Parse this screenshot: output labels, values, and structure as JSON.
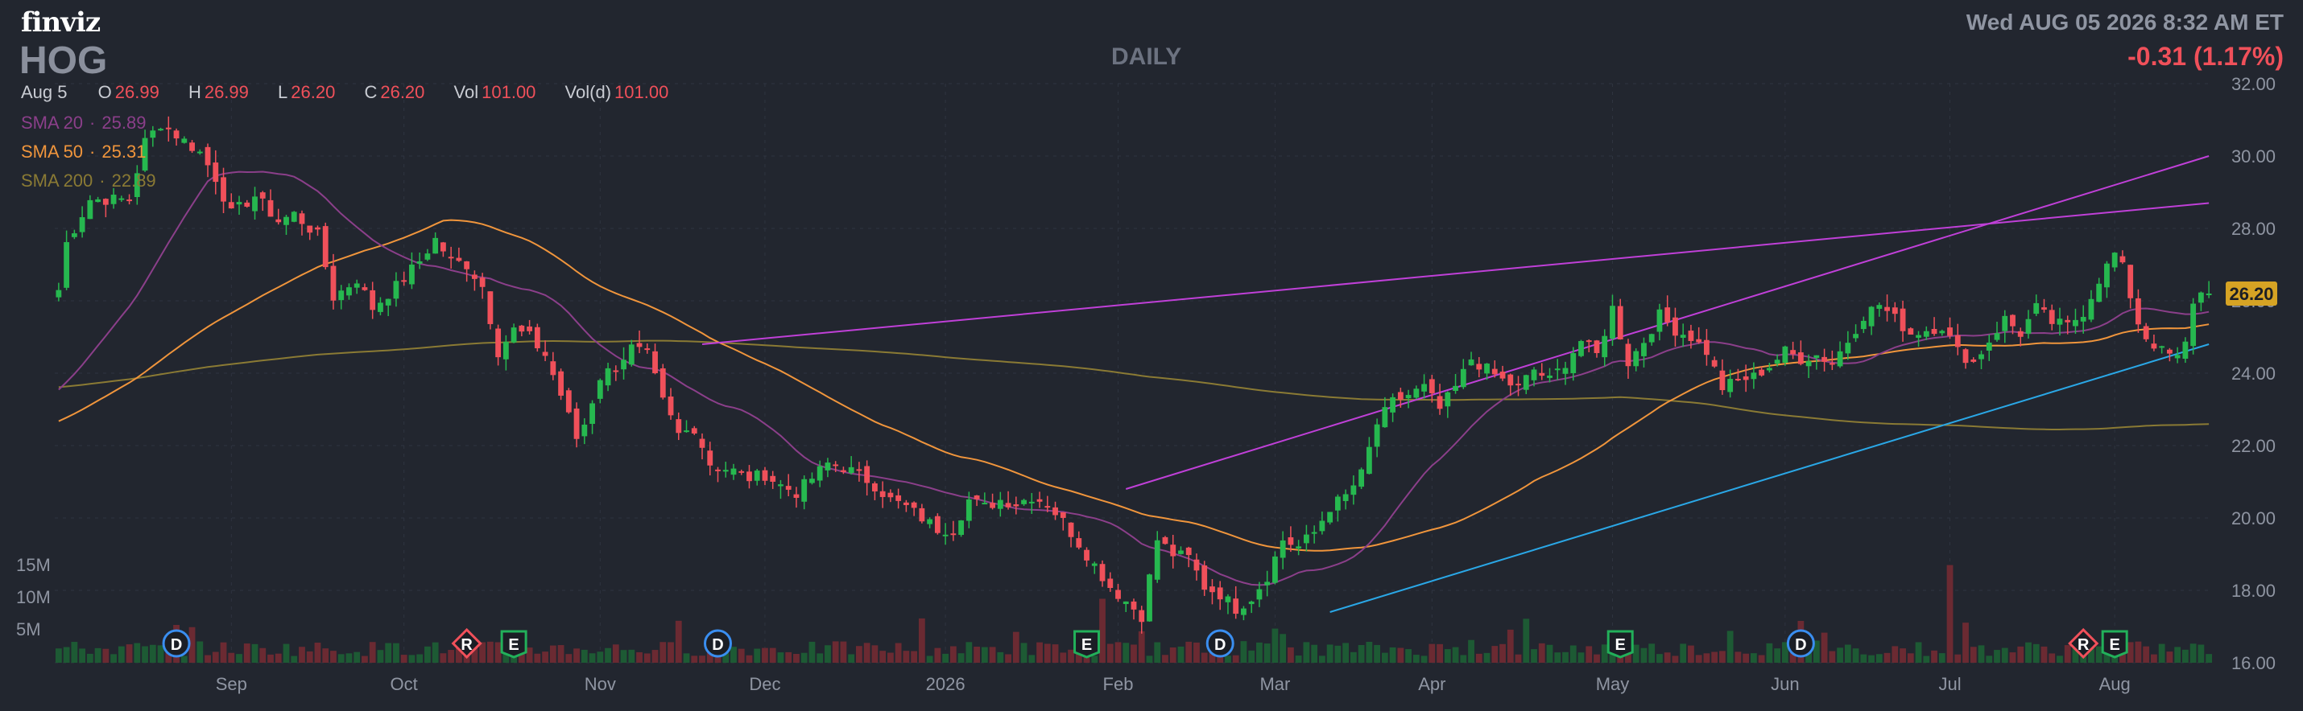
{
  "header": {
    "logo": "finviz",
    "ticker": "HOG",
    "period": "DAILY",
    "datetime": "Wed AUG 05 2026 8:32 AM ET",
    "change": "-0.31 (1.17%)"
  },
  "ohlc": {
    "date": "Aug 5",
    "o_label": "O",
    "o": "26.99",
    "h_label": "H",
    "h": "26.99",
    "l_label": "L",
    "l": "26.20",
    "c_label": "C",
    "c": "26.20",
    "vol_label": "Vol",
    "vol": "101.00",
    "vold_label": "Vol(d)",
    "vold": "101.00"
  },
  "indicators": [
    {
      "label": "SMA 20",
      "value": "25.89",
      "color": "#8b3f8a"
    },
    {
      "label": "SMA 50",
      "value": "25.31",
      "color": "#f0953c"
    },
    {
      "label": "SMA 200",
      "value": "22.89",
      "color": "#8a7a34"
    }
  ],
  "colors": {
    "up": "#26b84f",
    "down": "#f0505a",
    "volume_up": "#1d5a34",
    "volume_down": "#6b2a32",
    "trendline_purple": "#c040d8",
    "trendline_blue": "#2aa7e6",
    "grid": "#2f3440",
    "axis_text": "#8f95a2"
  },
  "chart_data": {
    "type": "candlestick",
    "ylim": [
      16,
      32
    ],
    "y_ticks": [
      "32.00",
      "30.00",
      "28.00",
      "26.00",
      "24.00",
      "22.00",
      "20.00",
      "18.00",
      "16.00"
    ],
    "volume_ticks": [
      "15M",
      "10M",
      "5M"
    ],
    "last_price": "26.20",
    "x_labels": [
      "Sep",
      "Oct",
      "Nov",
      "Dec",
      "2026",
      "Feb",
      "Mar",
      "Apr",
      "May",
      "Jun",
      "Jul",
      "Aug"
    ],
    "x_label_days": [
      22,
      44,
      69,
      90,
      113,
      135,
      155,
      175,
      198,
      220,
      241,
      262
    ],
    "price_anchors": [
      [
        0,
        26.3
      ],
      [
        1,
        27.6
      ],
      [
        4,
        28.8
      ],
      [
        9,
        28.8
      ],
      [
        11,
        30.4
      ],
      [
        13,
        30.9
      ],
      [
        18,
        30.1
      ],
      [
        20,
        29.4
      ],
      [
        22,
        28.4
      ],
      [
        25,
        28.9
      ],
      [
        28,
        28.2
      ],
      [
        30,
        28.4
      ],
      [
        33,
        27.8
      ],
      [
        35,
        26.1
      ],
      [
        38,
        26.6
      ],
      [
        40,
        25.8
      ],
      [
        43,
        26.4
      ],
      [
        46,
        27.1
      ],
      [
        48,
        27.7
      ],
      [
        50,
        27.1
      ],
      [
        52,
        27.0
      ],
      [
        54,
        26.4
      ],
      [
        56,
        24.6
      ],
      [
        58,
        25.2
      ],
      [
        60,
        25.0
      ],
      [
        62,
        24.5
      ],
      [
        64,
        23.4
      ],
      [
        66,
        22.2
      ],
      [
        67,
        22.6
      ],
      [
        69,
        23.9
      ],
      [
        71,
        24.2
      ],
      [
        73,
        24.7
      ],
      [
        75,
        24.5
      ],
      [
        77,
        23.2
      ],
      [
        79,
        22.3
      ],
      [
        81,
        22.5
      ],
      [
        83,
        21.5
      ],
      [
        86,
        21.3
      ],
      [
        88,
        21.1
      ],
      [
        90,
        21.2
      ],
      [
        92,
        20.9
      ],
      [
        94,
        20.7
      ],
      [
        96,
        21.1
      ],
      [
        98,
        21.5
      ],
      [
        100,
        21.4
      ],
      [
        102,
        21.2
      ],
      [
        104,
        20.9
      ],
      [
        106,
        20.5
      ],
      [
        108,
        20.3
      ],
      [
        110,
        20.0
      ],
      [
        112,
        19.7
      ],
      [
        114,
        19.7
      ],
      [
        116,
        20.5
      ],
      [
        118,
        20.3
      ],
      [
        120,
        20.5
      ],
      [
        122,
        20.4
      ],
      [
        124,
        20.6
      ],
      [
        126,
        20.4
      ],
      [
        128,
        19.9
      ],
      [
        130,
        19.3
      ],
      [
        132,
        18.7
      ],
      [
        134,
        18.1
      ],
      [
        136,
        17.7
      ],
      [
        138,
        17.3
      ],
      [
        140,
        19.4
      ],
      [
        142,
        19.0
      ],
      [
        144,
        18.9
      ],
      [
        146,
        18.1
      ],
      [
        148,
        17.9
      ],
      [
        150,
        17.5
      ],
      [
        152,
        17.8
      ],
      [
        154,
        18.4
      ],
      [
        156,
        19.4
      ],
      [
        158,
        19.2
      ],
      [
        160,
        19.6
      ],
      [
        162,
        20.3
      ],
      [
        164,
        20.6
      ],
      [
        166,
        21.2
      ],
      [
        168,
        22.6
      ],
      [
        170,
        23.2
      ],
      [
        172,
        23.4
      ],
      [
        174,
        23.6
      ],
      [
        176,
        23.0
      ],
      [
        178,
        23.6
      ],
      [
        180,
        24.4
      ],
      [
        182,
        24.1
      ],
      [
        184,
        23.8
      ],
      [
        186,
        23.6
      ],
      [
        188,
        24.1
      ],
      [
        190,
        23.8
      ],
      [
        192,
        24.3
      ],
      [
        194,
        24.9
      ],
      [
        196,
        24.5
      ],
      [
        198,
        25.8
      ],
      [
        200,
        24.3
      ],
      [
        202,
        24.9
      ],
      [
        204,
        25.6
      ],
      [
        206,
        25.2
      ],
      [
        208,
        25.0
      ],
      [
        210,
        24.6
      ],
      [
        212,
        23.6
      ],
      [
        214,
        23.8
      ],
      [
        216,
        23.9
      ],
      [
        218,
        24.2
      ],
      [
        220,
        24.6
      ],
      [
        222,
        24.4
      ],
      [
        224,
        24.5
      ],
      [
        226,
        24.3
      ],
      [
        228,
        24.9
      ],
      [
        230,
        25.6
      ],
      [
        232,
        25.9
      ],
      [
        234,
        25.5
      ],
      [
        236,
        25.1
      ],
      [
        238,
        25.2
      ],
      [
        240,
        25.3
      ],
      [
        242,
        24.6
      ],
      [
        244,
        24.3
      ],
      [
        246,
        24.9
      ],
      [
        248,
        25.5
      ],
      [
        250,
        25.1
      ],
      [
        252,
        25.8
      ],
      [
        254,
        25.4
      ],
      [
        256,
        25.3
      ],
      [
        258,
        25.7
      ],
      [
        260,
        26.6
      ],
      [
        262,
        27.3
      ],
      [
        263,
        26.9
      ],
      [
        265,
        25.4
      ],
      [
        266,
        25.0
      ],
      [
        268,
        24.6
      ],
      [
        270,
        24.4
      ],
      [
        271,
        24.8
      ],
      [
        272,
        26.0
      ],
      [
        273,
        26.2
      ]
    ],
    "volume_spikes": [
      [
        133,
        9.5
      ],
      [
        241,
        14.5
      ]
    ],
    "volume_avg": 2.0,
    "ma_smoothing": [
      20,
      50,
      200
    ],
    "trendlines": [
      {
        "color": "purple",
        "from": [
          82,
          24.8
        ],
        "to": [
          274,
          28.7
        ]
      },
      {
        "color": "purple",
        "from": [
          136,
          20.8
        ],
        "to": [
          274,
          30.0
        ]
      },
      {
        "color": "blue",
        "from": [
          162,
          17.4
        ],
        "to": [
          274,
          24.8
        ]
      }
    ],
    "events": [
      {
        "type": "D",
        "day": 15
      },
      {
        "type": "R",
        "day": 52
      },
      {
        "type": "E",
        "day": 58
      },
      {
        "type": "D",
        "day": 84
      },
      {
        "type": "E",
        "day": 131
      },
      {
        "type": "D",
        "day": 148
      },
      {
        "type": "E",
        "day": 199
      },
      {
        "type": "D",
        "day": 222
      },
      {
        "type": "R",
        "day": 258
      },
      {
        "type": "E",
        "day": 262
      }
    ]
  }
}
